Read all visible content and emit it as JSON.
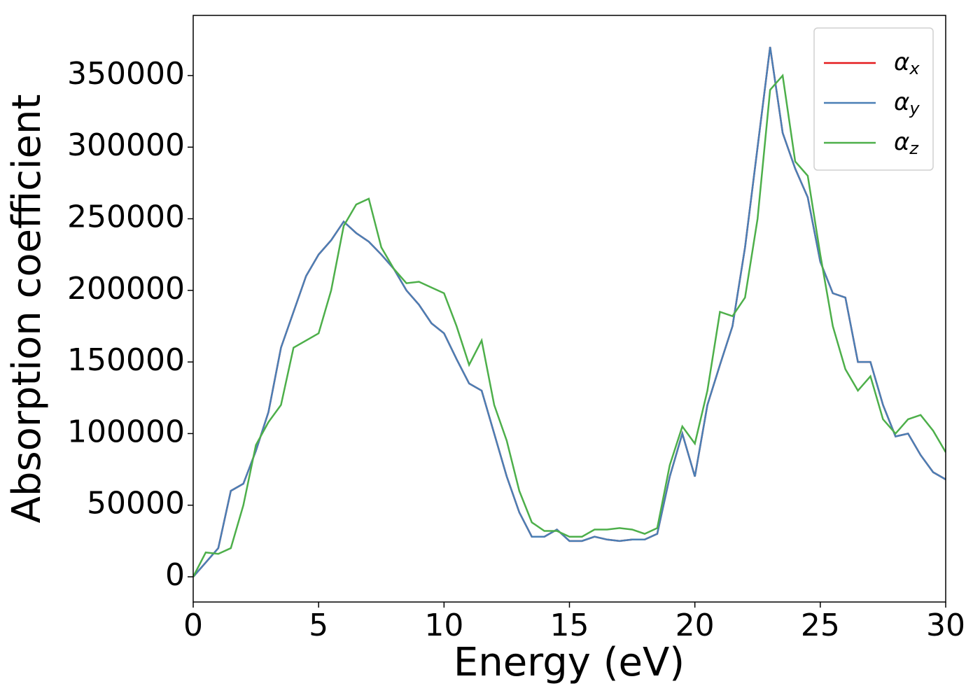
{
  "chart_data": {
    "type": "line",
    "xlabel": "Energy (eV)",
    "ylabel": "Absorption coefficient",
    "x": [
      0,
      0.5,
      1,
      1.5,
      2,
      2.5,
      3,
      3.5,
      4,
      4.5,
      5,
      5.5,
      6,
      6.5,
      7,
      7.5,
      8,
      8.5,
      9,
      9.5,
      10,
      10.5,
      11,
      11.5,
      12,
      12.5,
      13,
      13.5,
      14,
      14.5,
      15,
      15.5,
      16,
      16.5,
      17,
      17.5,
      18,
      18.5,
      19,
      19.5,
      20,
      20.5,
      21,
      21.5,
      22,
      22.5,
      23,
      23.5,
      24,
      24.5,
      25,
      25.5,
      26,
      26.5,
      27,
      27.5,
      28,
      28.5,
      29,
      29.5,
      30
    ],
    "series": [
      {
        "name": "αx",
        "color": "#e41a1c",
        "values": [
          0,
          10000,
          20000,
          60000,
          65000,
          88000,
          115000,
          160000,
          185000,
          210000,
          225000,
          235000,
          248000,
          240000,
          234000,
          225000,
          215000,
          200000,
          190000,
          177000,
          170000,
          152000,
          135000,
          130000,
          100000,
          70000,
          45000,
          28000,
          28000,
          33000,
          25000,
          25000,
          28000,
          26000,
          25000,
          26000,
          26000,
          30000,
          70000,
          100000,
          70000,
          120000,
          148000,
          175000,
          230000,
          300000,
          370000,
          310000,
          285000,
          265000,
          220000,
          198000,
          195000,
          150000,
          150000,
          120000,
          98000,
          100000,
          85000,
          73000,
          68000
        ]
      },
      {
        "name": "αy",
        "color": "#4a7fb5",
        "values": [
          0,
          10000,
          20000,
          60000,
          65000,
          88000,
          115000,
          160000,
          185000,
          210000,
          225000,
          235000,
          248000,
          240000,
          234000,
          225000,
          215000,
          200000,
          190000,
          177000,
          170000,
          152000,
          135000,
          130000,
          100000,
          70000,
          45000,
          28000,
          28000,
          33000,
          25000,
          25000,
          28000,
          26000,
          25000,
          26000,
          26000,
          30000,
          70000,
          100000,
          70000,
          120000,
          148000,
          175000,
          230000,
          300000,
          370000,
          310000,
          285000,
          265000,
          220000,
          198000,
          195000,
          150000,
          150000,
          120000,
          98000,
          100000,
          85000,
          73000,
          68000
        ]
      },
      {
        "name": "αz",
        "color": "#4daf4a",
        "values": [
          0,
          17000,
          16000,
          20000,
          50000,
          92000,
          108000,
          120000,
          160000,
          165000,
          170000,
          200000,
          245000,
          260000,
          264000,
          230000,
          215000,
          205000,
          206000,
          202000,
          198000,
          175000,
          148000,
          165000,
          120000,
          95000,
          60000,
          38000,
          32000,
          32000,
          28000,
          28000,
          33000,
          33000,
          34000,
          33000,
          30000,
          34000,
          78000,
          105000,
          93000,
          130000,
          185000,
          182000,
          195000,
          250000,
          340000,
          350000,
          290000,
          280000,
          225000,
          175000,
          145000,
          130000,
          140000,
          110000,
          100000,
          110000,
          113000,
          102000,
          87000
        ]
      }
    ],
    "xlim": [
      0,
      30
    ],
    "xticks": [
      0,
      5,
      10,
      15,
      20,
      25,
      30
    ],
    "ylim": [
      -17600,
      392000
    ],
    "yticks": [
      0,
      50000,
      100000,
      150000,
      200000,
      250000,
      300000,
      350000
    ],
    "legend": "upper right"
  }
}
